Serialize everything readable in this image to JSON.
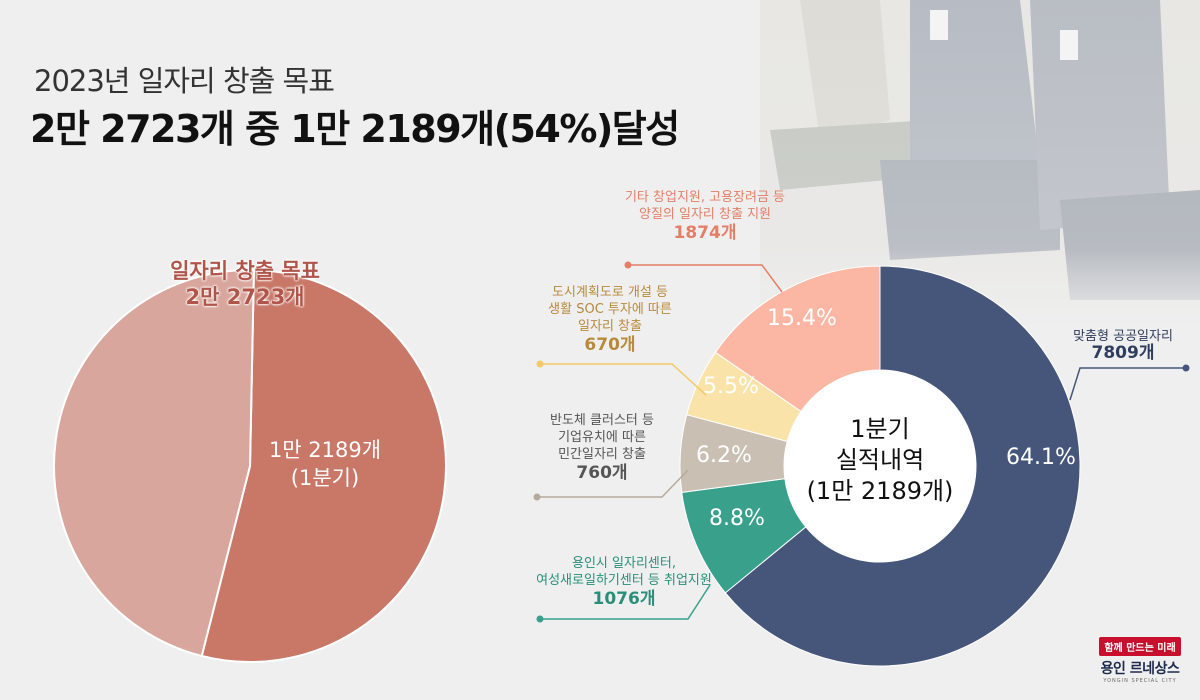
{
  "header": {
    "title_line1": "2023년 일자리 창출 목표",
    "title_line2": "2만 2723개 중 1만 2189개(54%)달성"
  },
  "colors": {
    "pie_remaining": "#d8a69c",
    "pie_achieved": "#c97767",
    "public_jobs": "#46567a",
    "quality_jobs": "#fbb7a4",
    "soc": "#f9e3a9",
    "semiconductor": "#c9bfb2",
    "employment_support": "#39a08b"
  },
  "chart_data": [
    {
      "type": "pie",
      "title": "",
      "center_label": [
        "일자리 창출 목표",
        "2만 2723개"
      ],
      "total": 22723,
      "slices": [
        {
          "label": "1만 2189개 (1분기)",
          "label_lines": [
            "1만 2189개",
            "(1분기)"
          ],
          "value": 12189,
          "color": "#c97767"
        },
        {
          "label": "",
          "value": 10534,
          "color": "#d8a69c"
        }
      ]
    },
    {
      "type": "pie",
      "subtype": "donut",
      "center_label": [
        "1분기",
        "실적내역",
        "(1만 2189개)"
      ],
      "total": 12189,
      "slices": [
        {
          "name": "맞춤형 공공일자리",
          "desc_lines": [
            "맞춤형 공공일자리"
          ],
          "count_label": "7809개",
          "value": 7809,
          "percent_label": "64.1%",
          "color": "#46567a"
        },
        {
          "name": "용인시 일자리센터, 여성새로일하기센터 등 취업지원",
          "desc_lines": [
            "용인시 일자리센터,",
            "여성새로일하기센터 등 취업지원"
          ],
          "count_label": "1076개",
          "value": 1076,
          "percent_label": "8.8%",
          "color": "#39a08b"
        },
        {
          "name": "반도체 클러스터 등 기업유치에 따른 민간일자리 창출",
          "desc_lines": [
            "반도체 클러스터 등",
            "기업유치에 따른",
            "민간일자리 창출"
          ],
          "count_label": "760개",
          "value": 760,
          "percent_label": "6.2%",
          "color": "#c9bfb2"
        },
        {
          "name": "도시계획도로 개설 등 생활 SOC 투자에 따른 일자리 창출",
          "desc_lines": [
            "도시계획도로 개설 등",
            "생활 SOC 투자에 따른",
            "일자리 창출"
          ],
          "count_label": "670개",
          "value": 670,
          "percent_label": "5.5%",
          "color": "#f9e3a9"
        },
        {
          "name": "기타 창업지원, 고용장려금 등 양질의 일자리 창출 지원",
          "desc_lines": [
            "기타 창업지원, 고용장려금 등",
            "양질의 일자리 창출 지원"
          ],
          "count_label": "1874개",
          "value": 1874,
          "percent_label": "15.4%",
          "color": "#fbb7a4"
        }
      ]
    }
  ],
  "logo": {
    "tagline": "함께 만드는 미래",
    "brand": "용인 르네상스",
    "sub": "YONGIN SPECIAL CITY"
  }
}
